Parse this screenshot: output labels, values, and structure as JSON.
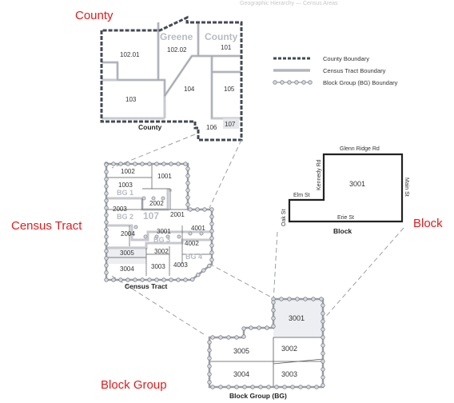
{
  "labels": {
    "county": "County",
    "census_tract": "Census Tract",
    "block": "Block",
    "block_group": "Block Group"
  },
  "colors": {
    "label_red": "#e31b1b",
    "county_boundary": "#444a55",
    "tract_boundary": "#c7c9cf",
    "bg_boundary": "#9a9ea6",
    "leader_dash": "#9a9ea6"
  },
  "county_panel": {
    "caption": "County",
    "ghost_name": "Greene",
    "ghost_county": "County",
    "tracts": [
      "102.01",
      "102.02",
      "101",
      "103",
      "104",
      "105",
      "106",
      "107"
    ]
  },
  "legend": {
    "county": "County Boundary",
    "census_tract": "Census Tract Boundary",
    "block_group": "Block Group (BG) Boundary"
  },
  "tract_panel": {
    "caption": "Census Tract",
    "ghost_tract": "107",
    "bg_labels": [
      "BG 1",
      "BG 2",
      "BG 3",
      "BG 4"
    ],
    "blocks": [
      "1002",
      "1001",
      "1003",
      "2003",
      "2002",
      "2001",
      "2004",
      "3001",
      "4001",
      "4002",
      "3002",
      "3005",
      "3004",
      "3003",
      "4003"
    ]
  },
  "block_panel": {
    "caption": "Block",
    "block_id": "3001",
    "streets": {
      "top": "Glenn Ridge Rd",
      "left_upper": "Kennedy Rd",
      "left_lower": "Oak St",
      "step": "Elm St",
      "bottom": "Erie St",
      "right": "Main St"
    }
  },
  "bg_panel": {
    "caption": "Block Group (BG)",
    "blocks": [
      "3001",
      "3005",
      "3002",
      "3004",
      "3003"
    ]
  }
}
